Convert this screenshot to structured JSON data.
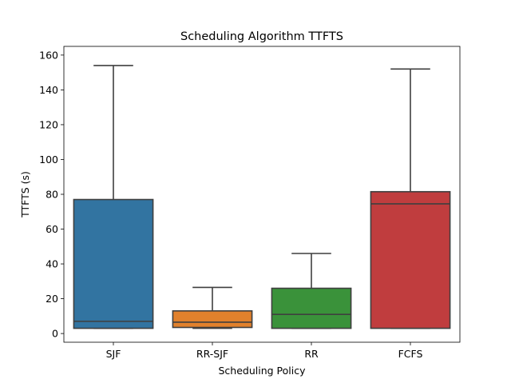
{
  "chart_data": {
    "type": "box",
    "title": "Scheduling Algorithm TTFTS",
    "xlabel": "Scheduling Policy",
    "ylabel": "TTFTS (s)",
    "ylim": [
      -5,
      165
    ],
    "yticks": [
      0,
      20,
      40,
      60,
      80,
      100,
      120,
      140,
      160
    ],
    "grid": false,
    "categories": [
      "SJF",
      "RR-SJF",
      "RR",
      "FCFS"
    ],
    "colors": [
      "#3274a1",
      "#e1812c",
      "#3a923a",
      "#c03d3e"
    ],
    "boxes": [
      {
        "category": "SJF",
        "whisker_low": 3,
        "q1": 3,
        "median": 7,
        "q3": 77,
        "whisker_high": 154
      },
      {
        "category": "RR-SJF",
        "whisker_low": 3,
        "q1": 3.5,
        "median": 6.5,
        "q3": 13,
        "whisker_high": 26.5
      },
      {
        "category": "RR",
        "whisker_low": 3,
        "q1": 3,
        "median": 11,
        "q3": 26,
        "whisker_high": 46
      },
      {
        "category": "FCFS",
        "whisker_low": 3,
        "q1": 3,
        "median": 74.5,
        "q3": 81.5,
        "whisker_high": 152
      }
    ]
  }
}
